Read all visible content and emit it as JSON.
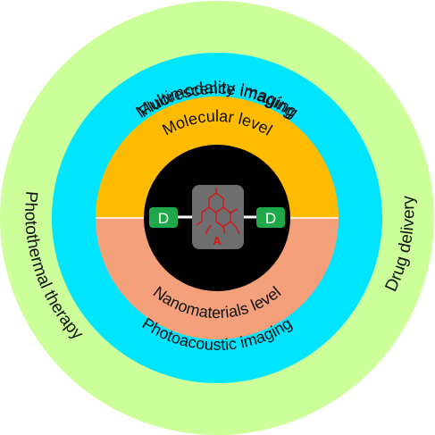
{
  "rings": {
    "outer": {
      "top_label": "Multimodality imaging",
      "left_label": "Photothermal therapy",
      "right_label": "Drug delivery"
    },
    "middle": {
      "top_label": "Fluorescence imaging",
      "bottom_label": "Photoacoustic imaging"
    },
    "inner": {
      "top_label": "Molecular level",
      "bottom_label": "Nanomaterials level"
    }
  },
  "core": {
    "donor_left": "D",
    "donor_right": "D",
    "acceptor": "A"
  },
  "colors": {
    "outer_ring": "#ccff99",
    "middle_ring": "#00e5ff",
    "molecular_half": "#ffbb00",
    "nano_half": "#f4a07a",
    "core": "#000000",
    "donor_box": "#1fa84a",
    "acceptor_box": "#6e6e6e",
    "acceptor_structure": "#e01010"
  }
}
